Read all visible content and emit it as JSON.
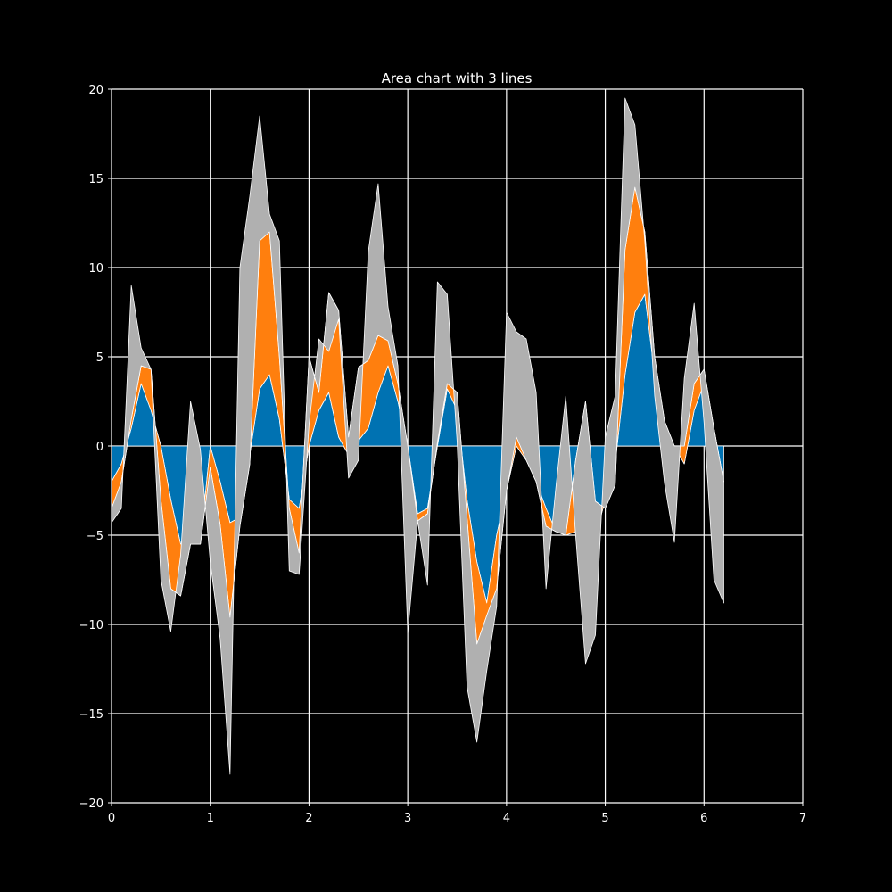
{
  "chart_data": {
    "type": "area",
    "stacked": true,
    "title": "Area chart with 3 lines",
    "xlabel": "",
    "ylabel": "",
    "xlim": [
      0,
      7
    ],
    "ylim": [
      -20,
      20
    ],
    "xticks": [
      0,
      1,
      2,
      3,
      4,
      5,
      6,
      7
    ],
    "yticks": [
      -20,
      -15,
      -10,
      -5,
      0,
      5,
      10,
      15,
      20
    ],
    "grid": true,
    "legend": "none",
    "x": [
      0.0,
      0.1,
      0.2,
      0.3,
      0.4,
      0.5,
      0.6,
      0.7,
      0.8,
      0.9,
      1.0,
      1.1,
      1.2,
      1.3,
      1.4,
      1.5,
      1.6,
      1.7,
      1.8,
      1.9,
      2.0,
      2.1,
      2.2,
      2.3,
      2.4,
      2.5,
      2.6,
      2.7,
      2.8,
      2.9,
      3.0,
      3.1,
      3.2,
      3.3,
      3.4,
      3.5,
      3.6,
      3.7,
      3.8,
      3.9,
      4.0,
      4.1,
      4.2,
      4.3,
      4.4,
      4.5,
      4.6,
      4.7,
      4.8,
      4.9,
      5.0,
      5.1,
      5.2,
      5.3,
      5.4,
      5.5,
      5.6,
      5.7,
      5.8,
      5.9,
      6.0,
      6.1,
      6.2
    ],
    "series": [
      {
        "color": "#0072b2",
        "values": [
          -2.0,
          -1.0,
          1.0,
          3.5,
          2.0,
          0.0,
          -3.0,
          -5.5,
          -5.5,
          -5.5,
          0.0,
          -2.0,
          -4.3,
          -4.0,
          -0.5,
          3.2,
          4.0,
          1.5,
          -3.0,
          -3.5,
          0.0,
          2.0,
          3.0,
          0.5,
          -0.5,
          0.3,
          1.0,
          3.0,
          4.5,
          2.5,
          0.0,
          -3.8,
          -3.5,
          0.0,
          3.2,
          2.0,
          -3.0,
          -6.5,
          -8.8,
          -5.0,
          -2.5,
          0.0,
          -0.8,
          -2.0,
          -3.5,
          -4.8,
          -5.0,
          -4.8,
          -5.0,
          -5.1,
          -3.0,
          -1.0,
          4.0,
          7.5,
          8.5,
          4.0,
          1.0,
          0.0,
          -1.0,
          2.0,
          3.5,
          1.0,
          -2.0
        ]
      },
      {
        "color": "#ff7f0e",
        "values": [
          -1.5,
          -1.0,
          0.5,
          1.0,
          2.3,
          -3.0,
          -5.0,
          -2.9,
          0.0,
          0.0,
          -1.2,
          -2.4,
          -5.3,
          -0.5,
          -0.5,
          8.3,
          8.0,
          3.5,
          -0.5,
          -2.5,
          5.0,
          1.0,
          5.6,
          7.1,
          1.0,
          4.1,
          3.8,
          3.2,
          1.4,
          1.0,
          0.0,
          -0.4,
          -0.3,
          0.2,
          0.3,
          1.0,
          -1.0,
          -4.6,
          -0.7,
          -3.0,
          0.0,
          0.5,
          0.0,
          0.0,
          -1.0,
          0.0,
          0.0,
          4.0,
          7.5,
          2.0,
          -0.5,
          -1.2,
          7.0,
          7.0,
          3.5,
          1.0,
          0.4,
          0.0,
          1.0,
          1.5,
          0.8,
          0.0,
          0.0
        ]
      },
      {
        "color": "#b0b0b0",
        "values": [
          -0.8,
          -1.5,
          7.5,
          1.0,
          0.0,
          -4.5,
          -2.4,
          2.3,
          8.0,
          5.3,
          -5.3,
          -6.4,
          -8.8,
          14.5,
          15.0,
          7.0,
          1.0,
          6.5,
          -3.5,
          -1.2,
          -3.8,
          3.0,
          -3.3,
          -0.5,
          -2.3,
          -5.2,
          6.1,
          8.5,
          1.9,
          1.0,
          -10.5,
          0.0,
          -4.0,
          9.0,
          5.0,
          -2.8,
          -9.5,
          -5.5,
          -3.1,
          -1.0,
          10.0,
          5.9,
          6.8,
          5.0,
          -3.5,
          2.5,
          7.8,
          -4.2,
          -14.7,
          -7.5,
          4.0,
          5.0,
          8.5,
          3.5,
          -0.5,
          -2.2,
          -3.5,
          -5.4,
          3.8,
          4.5,
          -3.0,
          -8.5,
          -6.8
        ]
      }
    ]
  }
}
